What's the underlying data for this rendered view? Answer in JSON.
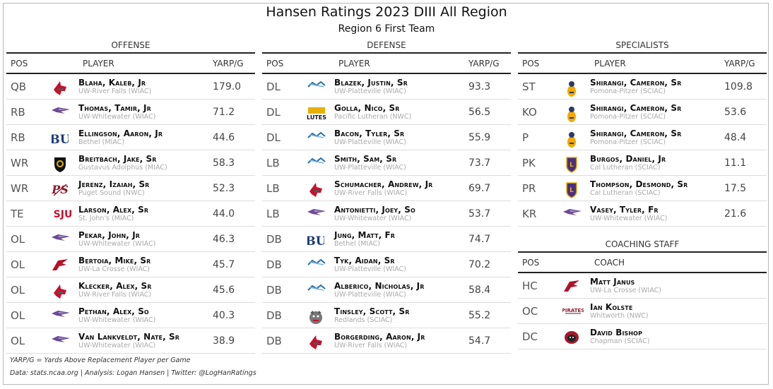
{
  "title": "Hansen Ratings 2023 DIII All Region",
  "subtitle": "Region 6 First Team",
  "offense": {
    "heading": "OFFENSE",
    "columns": {
      "pos": "POS",
      "player": "PLAYER",
      "value": "YARP/G"
    },
    "rows": [
      {
        "pos": "QB",
        "name": "Blaha, Kaleb, Jr",
        "school": "UW-River Falls (WIAC)",
        "value": "179.0",
        "logo": "falcon-helmet-icon"
      },
      {
        "pos": "RB",
        "name": "Thomas, Tamir, Jr",
        "school": "UW-Whitewater (WIAC)",
        "value": "71.2",
        "logo": "warhawk-icon"
      },
      {
        "pos": "RB",
        "name": "Ellingson, Aaron, Jr",
        "school": "Bethel (MIAC)",
        "value": "44.6",
        "logo": "bu-icon"
      },
      {
        "pos": "WR",
        "name": "Breitbach, Jake, Sr",
        "school": "Gustavus Adolphus (MIAC)",
        "value": "58.3",
        "logo": "gustavus-shield-icon"
      },
      {
        "pos": "WR",
        "name": "Jerenz, Izaiah, Sr",
        "school": "Puget Sound (NWC)",
        "value": "52.3",
        "logo": "ps-icon"
      },
      {
        "pos": "TE",
        "name": "Larson, Alex, Sr",
        "school": "St. John's (MIAC)",
        "value": "44.0",
        "logo": "sju-icon"
      },
      {
        "pos": "OL",
        "name": "Pekar, John, Jr",
        "school": "UW-Whitewater (WIAC)",
        "value": "46.3",
        "logo": "warhawk-icon"
      },
      {
        "pos": "OL",
        "name": "Bertoia, Mike, Sr",
        "school": "UW-La Crosse (WIAC)",
        "value": "45.7",
        "logo": "eagle-icon"
      },
      {
        "pos": "OL",
        "name": "Klecker, Alex, Sr",
        "school": "UW-River Falls (WIAC)",
        "value": "45.6",
        "logo": "falcon-helmet-icon"
      },
      {
        "pos": "OL",
        "name": "Pethan, Alex, So",
        "school": "UW-Whitewater (WIAC)",
        "value": "40.3",
        "logo": "warhawk-icon"
      },
      {
        "pos": "OL",
        "name": "Van Lankveldt, Nate, Sr",
        "school": "UW-Whitewater (WIAC)",
        "value": "38.9",
        "logo": "warhawk-icon"
      }
    ]
  },
  "defense": {
    "heading": "DEFENSE",
    "columns": {
      "pos": "POS",
      "player": "PLAYER",
      "value": "YARP/G"
    },
    "rows": [
      {
        "pos": "DL",
        "name": "Blazek, Justin, Sr",
        "school": "UW-Platteville (WIAC)",
        "value": "93.3",
        "logo": "pioneer-icon"
      },
      {
        "pos": "DL",
        "name": "Golla, Nico, Sr",
        "school": "Pacific Lutheran (NWC)",
        "value": "56.5",
        "logo": "lutes-icon"
      },
      {
        "pos": "DL",
        "name": "Bacon, Tyler, Sr",
        "school": "UW-Platteville (WIAC)",
        "value": "55.9",
        "logo": "pioneer-icon"
      },
      {
        "pos": "LB",
        "name": "Smith, Sam, Sr",
        "school": "UW-Platteville (WIAC)",
        "value": "73.7",
        "logo": "pioneer-icon"
      },
      {
        "pos": "LB",
        "name": "Schumacher, Andrew, Jr",
        "school": "UW-River Falls (WIAC)",
        "value": "69.7",
        "logo": "falcon-helmet-icon"
      },
      {
        "pos": "LB",
        "name": "Antonietti, Joey, So",
        "school": "UW-Whitewater (WIAC)",
        "value": "53.7",
        "logo": "warhawk-icon"
      },
      {
        "pos": "DB",
        "name": "Jung, Matt, Fr",
        "school": "Bethel (MIAC)",
        "value": "74.7",
        "logo": "bu-icon"
      },
      {
        "pos": "DB",
        "name": "Tyk, Aidan, Sr",
        "school": "UW-Platteville (WIAC)",
        "value": "70.2",
        "logo": "pioneer-icon"
      },
      {
        "pos": "DB",
        "name": "Alberico, Nicholas, Jr",
        "school": "UW-Platteville (WIAC)",
        "value": "58.4",
        "logo": "pioneer-icon"
      },
      {
        "pos": "DB",
        "name": "Tinsley, Scott, Sr",
        "school": "Redlands (SCIAC)",
        "value": "55.2",
        "logo": "bulldog-icon"
      },
      {
        "pos": "DB",
        "name": "Borgerding, Aaron, Jr",
        "school": "UW-River Falls (WIAC)",
        "value": "54.7",
        "logo": "falcon-helmet-icon"
      }
    ]
  },
  "specialists": {
    "heading": "SPECIALISTS",
    "columns": {
      "pos": "POS",
      "player": "PLAYER",
      "value": "YARP/G"
    },
    "rows": [
      {
        "pos": "ST",
        "name": "Shirangi, Cameron, Sr",
        "school": "Pomona-Pitzer (SCIAC)",
        "value": "109.8",
        "logo": "sagehen-icon"
      },
      {
        "pos": "KO",
        "name": "Shirangi, Cameron, Sr",
        "school": "Pomona-Pitzer (SCIAC)",
        "value": "53.6",
        "logo": "sagehen-icon"
      },
      {
        "pos": "P",
        "name": "Shirangi, Cameron, Sr",
        "school": "Pomona-Pitzer (SCIAC)",
        "value": "48.4",
        "logo": "sagehen-icon"
      },
      {
        "pos": "PK",
        "name": "Burgos, Daniel, Jr",
        "school": "Cal Lutheran (SCIAC)",
        "value": "11.1",
        "logo": "cal-lutheran-icon"
      },
      {
        "pos": "PR",
        "name": "Thompson, Desmond, Sr",
        "school": "Cal Lutheran (SCIAC)",
        "value": "17.5",
        "logo": "cal-lutheran-icon"
      },
      {
        "pos": "KR",
        "name": "Vasey, Tyler, Fr",
        "school": "UW-Whitewater (WIAC)",
        "value": "21.6",
        "logo": "warhawk-icon"
      }
    ]
  },
  "coaching": {
    "heading": "COACHING STAFF",
    "columns": {
      "pos": "POS",
      "coach": "COACH"
    },
    "rows": [
      {
        "pos": "HC",
        "name": "Matt Janus",
        "school": "UW-La Crosse (WIAC)",
        "logo": "eagle-icon"
      },
      {
        "pos": "OC",
        "name": "Ian Kolste",
        "school": "Whitworth (NWC)",
        "logo": "pirates-icon"
      },
      {
        "pos": "DC",
        "name": "David Bishop",
        "school": "Chapman (SCIAC)",
        "logo": "chapman-panther-icon"
      }
    ]
  },
  "footnotes": {
    "definition": "YARP/G = Yards Above Replacement Player per Game",
    "credits": "Data: stats.ncaa.org | Analysis: Logan Hansen | Twitter: @LogHanRatings"
  }
}
